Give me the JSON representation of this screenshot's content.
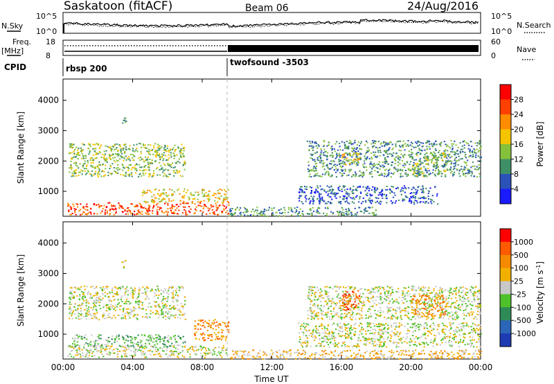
{
  "header": {
    "title": "Saskatoon (fitACF)",
    "beam": "Beam 06",
    "date": "24/Aug/2016"
  },
  "top_panels": {
    "nsky_label": "N.Sky",
    "nsky_ticks": [
      "10^5",
      "10^0"
    ],
    "nsky_right_ticks": [
      "10^5",
      "10^0"
    ],
    "nsearch_label": "N.Search",
    "freq_label": "Freq.",
    "freq_unit": "[MHz]",
    "freq_ticks": [
      "18",
      "8"
    ],
    "nave_ticks": [
      "60",
      "0"
    ],
    "nave_label": "Nave",
    "cpid_label": "CPID",
    "cpid_segments": [
      {
        "label": "rbsp 200",
        "start_hour": 0
      },
      {
        "label": "twofsound -3503",
        "start_hour": 9.5
      }
    ]
  },
  "chart_data": [
    {
      "type": "heatmap",
      "name": "power",
      "ylabel": "Slant Range [km]",
      "yticks": [
        1000,
        2000,
        3000,
        4000
      ],
      "ylim": [
        180,
        4700
      ],
      "xlim": [
        0,
        24
      ],
      "colorbar_label": "Power [dB]",
      "colorbar_ticks": [
        "4",
        "8",
        "12",
        "16",
        "20",
        "24",
        "28"
      ],
      "colorbar_colors": [
        "#1a1aff",
        "#2a52b8",
        "#3f8f66",
        "#86c13c",
        "#f5c400",
        "#ff8c00",
        "#ff4000",
        "#ff0000"
      ],
      "blobs": [
        {
          "h0": 0.2,
          "h1": 9.5,
          "r0": 250,
          "r1": 650,
          "level": 6
        },
        {
          "h0": 4.5,
          "h1": 9.5,
          "r0": 650,
          "r1": 1100,
          "level": 4
        },
        {
          "h0": 0.3,
          "h1": 7.0,
          "r0": 1500,
          "r1": 2600,
          "level": 3
        },
        {
          "h0": 3.3,
          "h1": 3.6,
          "r0": 3200,
          "r1": 3450,
          "level": 2
        },
        {
          "h0": 9.5,
          "h1": 18.0,
          "r0": 200,
          "r1": 500,
          "level": 2
        },
        {
          "h0": 13.5,
          "h1": 21.5,
          "r0": 600,
          "r1": 1200,
          "level": 1
        },
        {
          "h0": 14.0,
          "h1": 24.0,
          "r0": 1500,
          "r1": 2700,
          "level": 2
        },
        {
          "h0": 16.0,
          "h1": 17.0,
          "r0": 1900,
          "r1": 2300,
          "level": 4
        },
        {
          "h0": 20.0,
          "h1": 22.0,
          "r0": 1500,
          "r1": 2300,
          "level": 3
        }
      ]
    },
    {
      "type": "heatmap",
      "name": "velocity",
      "ylabel": "Slant Range [km]",
      "yticks": [
        1000,
        2000,
        3000,
        4000
      ],
      "ylim": [
        180,
        4700
      ],
      "xlim": [
        0,
        24
      ],
      "xlabel": "Time UT",
      "xticks": [
        "00:00",
        "04:00",
        "08:00",
        "12:00",
        "16:00",
        "20:00",
        "00:00"
      ],
      "colorbar_label": "Velocity [m s^-1]",
      "colorbar_ticks": [
        "1000",
        "500",
        "100",
        "25",
        "-25",
        "-100",
        "-500",
        "-1000"
      ],
      "colorbar_colors": [
        "#1f3bb3",
        "#2b66b8",
        "#2e8b57",
        "#4fc12a",
        "#c8c8c8",
        "#f0b000",
        "#f58a00",
        "#ff5a00",
        "#ff0000"
      ],
      "blobs": [
        {
          "h0": 0.2,
          "h1": 9.5,
          "r0": 250,
          "r1": 650,
          "level": 4
        },
        {
          "h0": 0.5,
          "h1": 7.0,
          "r0": 600,
          "r1": 1000,
          "level": 3
        },
        {
          "h0": 7.5,
          "h1": 9.5,
          "r0": 800,
          "r1": 1500,
          "level": 6
        },
        {
          "h0": 0.3,
          "h1": 7.0,
          "r0": 1500,
          "r1": 2600,
          "level": 4
        },
        {
          "h0": 9.5,
          "h1": 24.0,
          "r0": 200,
          "r1": 500,
          "level": 5
        },
        {
          "h0": 13.5,
          "h1": 24.0,
          "r0": 600,
          "r1": 1400,
          "level": 4
        },
        {
          "h0": 14.0,
          "h1": 24.0,
          "r0": 1500,
          "r1": 2600,
          "level": 4
        },
        {
          "h0": 16.0,
          "h1": 17.0,
          "r0": 1800,
          "r1": 2500,
          "level": 7
        },
        {
          "h0": 20.0,
          "h1": 22.0,
          "r0": 1600,
          "r1": 2300,
          "level": 6
        },
        {
          "h0": 3.3,
          "h1": 3.6,
          "r0": 3200,
          "r1": 3450,
          "level": 4
        }
      ]
    }
  ]
}
